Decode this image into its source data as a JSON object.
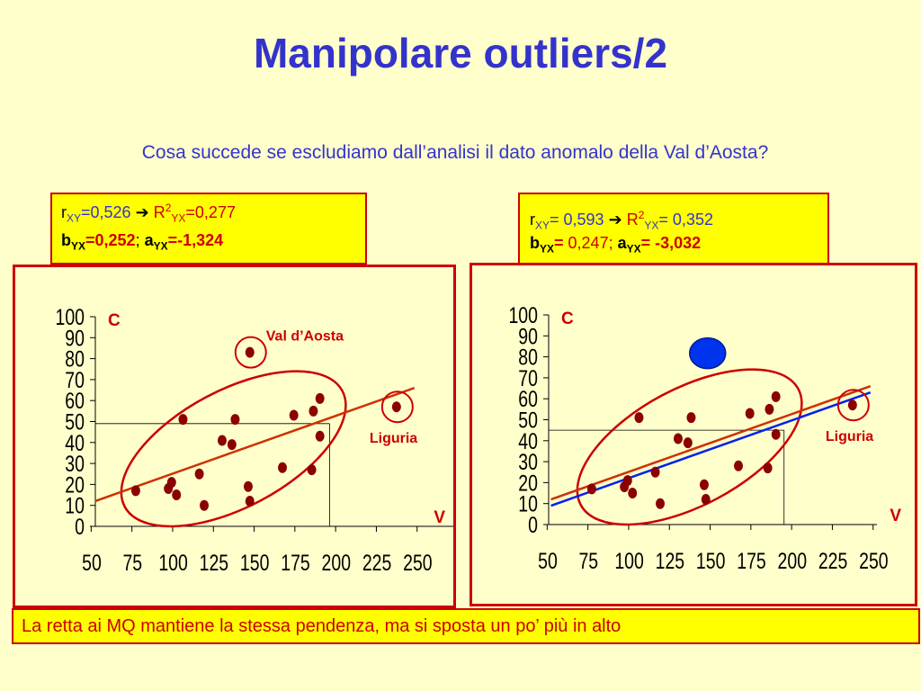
{
  "title": "Manipolare outliers/2",
  "subtitle": "Cosa succede se escludiamo dall’analisi il dato anomalo della Val d’Aosta?",
  "footer": "La retta ai MQ mantiene la stessa pendenza, ma si sposta un po’ più in alto",
  "left_stats": {
    "r_label": "r",
    "r_sub": "XY",
    "r_val": "=0,526",
    "R_label": "R",
    "R_sup": "2",
    "R_sub": "YX",
    "R_val": "=0,277",
    "b_label": "b",
    "b_sub": "YX",
    "b_val": "=0,252",
    "sep": ";",
    "a_label": "a",
    "a_sub": "YX",
    "a_val": "=-1,324"
  },
  "right_stats": {
    "r_label": "r",
    "r_sub": "XY",
    "r_val": "= 0,593",
    "R_label": "R",
    "R_sup": "2",
    "R_sub": "YX",
    "R_val": "= 0,352",
    "b_label": "b",
    "b_sub": "YX",
    "b_val": "=",
    "b_num": " 0,247;",
    "a_label": "a",
    "a_sub": "YX",
    "a_val": "= -3,032"
  },
  "colors": {
    "title": "#3333cc",
    "point": "#8b0000",
    "line_red": "#cc3300",
    "line_blue": "#0022ee",
    "panel_border": "#cc0000",
    "highlight": "#0033ee"
  },
  "chart_data": [
    {
      "type": "scatter",
      "ylabel": "C",
      "xlabel": "V",
      "xlim": [
        50,
        250
      ],
      "ylim": [
        0,
        100
      ],
      "x_ticks": [
        "50",
        "75",
        "100",
        "125",
        "150",
        "175",
        "200",
        "225",
        "250"
      ],
      "y_ticks": [
        "0",
        "10",
        "20",
        "30",
        "40",
        "50",
        "60",
        "70",
        "80",
        "90",
        "100"
      ],
      "points": [
        {
          "x": 77,
          "y": 17
        },
        {
          "x": 97,
          "y": 18
        },
        {
          "x": 99,
          "y": 21
        },
        {
          "x": 102,
          "y": 15
        },
        {
          "x": 106,
          "y": 51
        },
        {
          "x": 116,
          "y": 25
        },
        {
          "x": 119,
          "y": 10
        },
        {
          "x": 130,
          "y": 41
        },
        {
          "x": 136,
          "y": 39
        },
        {
          "x": 138,
          "y": 51
        },
        {
          "x": 146,
          "y": 19
        },
        {
          "x": 147,
          "y": 12
        },
        {
          "x": 167,
          "y": 28
        },
        {
          "x": 174,
          "y": 53
        },
        {
          "x": 185,
          "y": 27
        },
        {
          "x": 186,
          "y": 55
        },
        {
          "x": 190,
          "y": 43
        },
        {
          "x": 190,
          "y": 61
        },
        {
          "x": 237,
          "y": 57
        },
        {
          "x": 147,
          "y": 83
        }
      ],
      "annotations": [
        {
          "label": "Val d’Aosta",
          "x": 147,
          "y": 83
        },
        {
          "label": "Liguria",
          "x": 237,
          "y": 57
        }
      ],
      "lines": [
        {
          "color": "red",
          "x": [
            52,
            248
          ],
          "y": [
            12,
            66
          ]
        }
      ],
      "guide": {
        "x": 196,
        "y": 49
      }
    },
    {
      "type": "scatter",
      "ylabel": "C",
      "xlabel": "V",
      "xlim": [
        50,
        250
      ],
      "ylim": [
        0,
        100
      ],
      "x_ticks": [
        "50",
        "75",
        "100",
        "125",
        "150",
        "175",
        "200",
        "225",
        "250"
      ],
      "y_ticks": [
        "0",
        "10",
        "20",
        "30",
        "40",
        "50",
        "60",
        "70",
        "80",
        "90",
        "100"
      ],
      "points": [
        {
          "x": 77,
          "y": 17
        },
        {
          "x": 97,
          "y": 18
        },
        {
          "x": 99,
          "y": 21
        },
        {
          "x": 102,
          "y": 15
        },
        {
          "x": 106,
          "y": 51
        },
        {
          "x": 116,
          "y": 25
        },
        {
          "x": 119,
          "y": 10
        },
        {
          "x": 130,
          "y": 41
        },
        {
          "x": 136,
          "y": 39
        },
        {
          "x": 138,
          "y": 51
        },
        {
          "x": 146,
          "y": 19
        },
        {
          "x": 147,
          "y": 12
        },
        {
          "x": 167,
          "y": 28
        },
        {
          "x": 174,
          "y": 53
        },
        {
          "x": 185,
          "y": 27
        },
        {
          "x": 186,
          "y": 55
        },
        {
          "x": 190,
          "y": 43
        },
        {
          "x": 190,
          "y": 61
        },
        {
          "x": 237,
          "y": 57
        }
      ],
      "excluded_point": {
        "x": 147,
        "y": 83
      },
      "annotations": [
        {
          "label": "Liguria",
          "x": 237,
          "y": 57
        }
      ],
      "lines": [
        {
          "color": "red",
          "x": [
            52,
            248
          ],
          "y": [
            12,
            66
          ]
        },
        {
          "color": "blue",
          "x": [
            52,
            248
          ],
          "y": [
            9,
            63
          ]
        }
      ],
      "guide": {
        "x": 195,
        "y": 45
      }
    }
  ]
}
